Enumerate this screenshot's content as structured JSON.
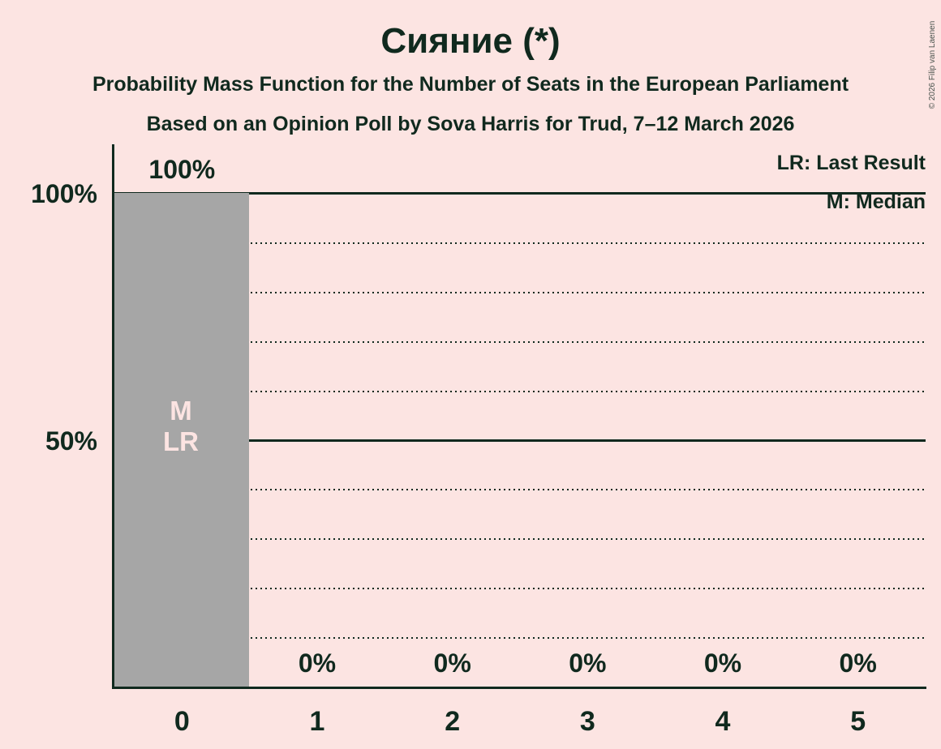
{
  "header": {
    "title": "Сияние (*)",
    "subtitle1": "Probability Mass Function for the Number of Seats in the European Parliament",
    "subtitle2": "Based on an Opinion Poll by Sova Harris for Trud, 7–12 March 2026"
  },
  "copyright": "© 2026 Filip van Laenen",
  "legend": {
    "last_result": "LR: Last Result",
    "median": "M: Median"
  },
  "chart_data": {
    "type": "bar",
    "title": "Сияние (*)",
    "subtitle": "Probability Mass Function for the Number of Seats in the European Parliament",
    "source_note": "Based on an Opinion Poll by Sova Harris for Trud, 7–12 March 2026",
    "categories": [
      "0",
      "1",
      "2",
      "3",
      "4",
      "5"
    ],
    "values": [
      100,
      0,
      0,
      0,
      0,
      0
    ],
    "value_labels": [
      "100%",
      "0%",
      "0%",
      "0%",
      "0%",
      "0%"
    ],
    "ylim": [
      0,
      100
    ],
    "ytick_labels": {
      "top": "100%",
      "middle": "50%"
    },
    "ytick_values": [
      100,
      50
    ],
    "grid": "dotted horizontal lines every 10%, solid lines at 100% and 50%",
    "legend_position": "top-right",
    "annotations": {
      "median_label": "M",
      "last_result_label": "LR",
      "annotated_category": "0"
    }
  },
  "colors": {
    "background": "#fce4e2",
    "bar": "#a6a6a6",
    "text": "#10291e",
    "bar_annotation_text": "#fce4e2",
    "copyright_text": "#4a544e"
  }
}
